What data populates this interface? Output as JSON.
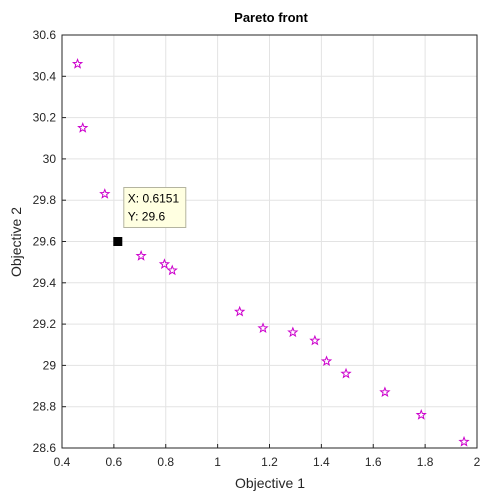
{
  "chart_data": {
    "type": "scatter",
    "title": "Pareto front",
    "xlabel": "Objective 1",
    "ylabel": "Objective 2",
    "xlim": [
      0.4,
      2
    ],
    "ylim": [
      28.6,
      30.6
    ],
    "xticks": [
      "0.4",
      "0.6",
      "0.8",
      "1",
      "1.2",
      "1.4",
      "1.6",
      "1.8",
      "2"
    ],
    "yticks": [
      "28.6",
      "28.8",
      "29",
      "29.2",
      "29.4",
      "29.6",
      "29.8",
      "30",
      "30.2",
      "30.4",
      "30.6"
    ],
    "grid": true,
    "marker": "pentagram",
    "marker_color": "#cc00cc",
    "series": [
      {
        "x": [
          0.46,
          0.48,
          0.565,
          0.705,
          0.795,
          0.825,
          1.085,
          1.175,
          1.29,
          1.375,
          1.42,
          1.495,
          1.645,
          1.785,
          1.95
        ],
        "y": [
          30.46,
          30.15,
          29.83,
          29.53,
          29.49,
          29.46,
          29.26,
          29.18,
          29.16,
          29.12,
          29.02,
          28.96,
          28.87,
          28.76,
          28.63
        ]
      }
    ],
    "datatip": {
      "x": 0.6151,
      "y": 29.6,
      "line1": "X: 0.6151",
      "line2": "Y: 29.6"
    }
  }
}
